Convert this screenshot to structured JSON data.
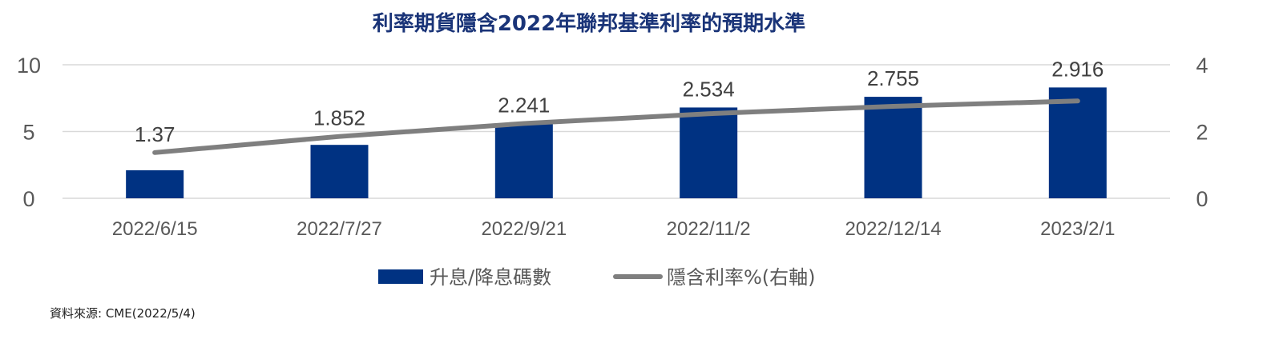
{
  "chart_data": {
    "type": "bar",
    "title": "利率期貨隱含2022年聯邦基準利率的預期水準",
    "categories": [
      "2022/6/15",
      "2022/7/27",
      "2022/9/21",
      "2022/11/2",
      "2022/12/14",
      "2023/2/1"
    ],
    "series": [
      {
        "name": "升息/降息碼數",
        "type": "bar",
        "axis": "left",
        "values": [
          2.1,
          4.0,
          5.6,
          6.8,
          7.6,
          8.3
        ],
        "color": "#003282"
      },
      {
        "name": "隱含利率%(右軸)",
        "type": "line",
        "axis": "right",
        "values": [
          1.37,
          1.852,
          2.241,
          2.534,
          2.755,
          2.916
        ],
        "data_labels": [
          "1.37",
          "1.852",
          "2.241",
          "2.534",
          "2.755",
          "2.916"
        ],
        "color": "#7f7f7f"
      }
    ],
    "y_left": {
      "ylim": [
        0,
        10
      ],
      "ticks": [
        "0",
        "5",
        "10"
      ]
    },
    "y_right": {
      "ylim": [
        0,
        4
      ],
      "ticks": [
        "0",
        "2",
        "4"
      ]
    },
    "grid": true,
    "legend_position": "bottom-center",
    "title_color": "#1a3478"
  },
  "source": "資料來源: CME(2022/5/4)"
}
